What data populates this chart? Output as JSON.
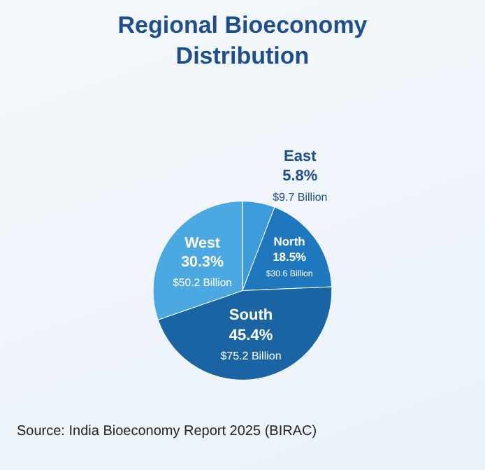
{
  "chart_data": {
    "type": "pie",
    "title": "Regional Bioeconomy Distribution",
    "categories": [
      "East",
      "North",
      "South",
      "West"
    ],
    "values": [
      9.7,
      30.6,
      75.2,
      50.2
    ],
    "value_labels": [
      "5.8%\n$9.7 Billion",
      "18.5%\n$30.6 Billion",
      "45.4%\n$75.2 Billion",
      "30.3%\n$50.2 Billion"
    ],
    "colors": [
      "#3d9ddb",
      "#1f77bd",
      "#1a64a3",
      "#4ba8e0"
    ],
    "annotations": [
      "Source: India Bioeconomy Report 2025 (BIRAC)"
    ],
    "legend": false
  }
}
